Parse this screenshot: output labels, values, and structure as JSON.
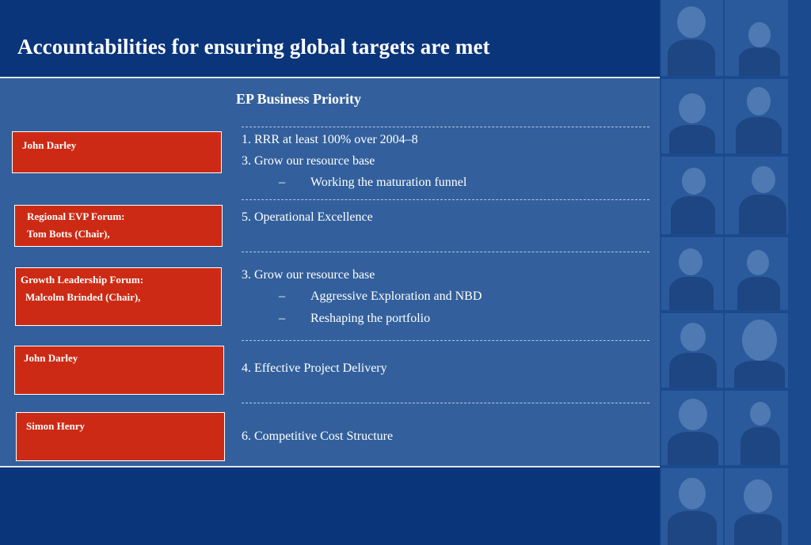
{
  "title": "Accountabilities for ensuring global targets are met",
  "heading": "EP Business Priority",
  "owners": [
    {
      "lines": [
        "John Darley"
      ]
    },
    {
      "lines": [
        "Regional EVP Forum:",
        "Tom Botts (Chair),"
      ]
    },
    {
      "lines": [
        "Growth Leadership Forum:",
        "Malcolm Brinded (Chair),"
      ]
    },
    {
      "lines": [
        "John Darley"
      ]
    },
    {
      "lines": [
        "Simon Henry"
      ]
    }
  ],
  "priorities": [
    {
      "main": [
        "1. RRR at least 100% over 2004–8",
        "3. Grow our resource base"
      ],
      "subs": [
        "Working the maturation funnel"
      ]
    },
    {
      "main": [
        "5. Operational Excellence"
      ],
      "subs": []
    },
    {
      "main": [
        "3. Grow our resource base"
      ],
      "subs": [
        "Aggressive Exploration and NBD",
        "Reshaping the portfolio"
      ]
    },
    {
      "main": [
        "4. Effective Project Delivery"
      ],
      "subs": []
    },
    {
      "main": [
        "6. Competitive Cost Structure"
      ],
      "subs": []
    }
  ],
  "bullet": "–",
  "colors": {
    "background": "#0b357a",
    "panel": "#33609c",
    "owner_box": "#cc2a14",
    "text": "#ffffff"
  }
}
